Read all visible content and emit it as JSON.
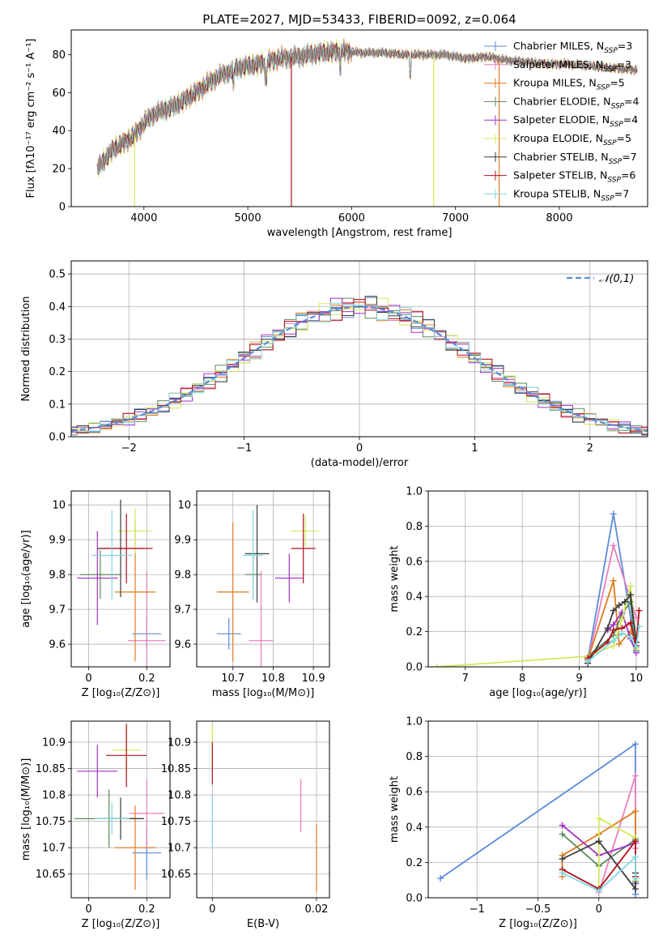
{
  "title": "PLATE=2027, MJD=53433, FIBERID=0092, z=0.064",
  "colors": {
    "Chabrier MILES": "#5b8bd9",
    "Salpeter MILES": "#e77fbe",
    "Kroupa MILES": "#e07b1f",
    "Chabrier ELODIE": "#5a8a5a",
    "Salpeter ELODIE": "#a52fc9",
    "Kroupa ELODIE": "#d2e85a",
    "Chabrier STELIB": "#3a3a3a",
    "Salpeter STELIB": "#b0101a",
    "Kroupa STELIB": "#7fd7e0"
  },
  "chart_data": [
    {
      "id": "spectrum",
      "type": "line",
      "title": "PLATE=2027, MJD=53433, FIBERID=0092, z=0.064",
      "xlabel": "wavelength [Angstrom, rest frame]",
      "ylabel": "Flux [fλ10⁻¹⁷ erg cm⁻² s⁻¹ A⁻¹]",
      "xlim": [
        3300,
        8850
      ],
      "ylim": [
        0,
        93
      ],
      "xticks": [
        4000,
        5000,
        6000,
        7000,
        8000
      ],
      "yticks": [
        0,
        20,
        40,
        60,
        80
      ],
      "legend_position": "top-right",
      "continuum": {
        "wavelength": [
          3550,
          3700,
          3900,
          4000,
          4100,
          4300,
          4500,
          4700,
          4900,
          5100,
          5300,
          5500,
          5700,
          5900,
          6100,
          6300,
          6500,
          6700,
          6900,
          7100,
          7300,
          7500,
          7700,
          7900,
          8100,
          8300,
          8500,
          8750
        ],
        "flux": [
          20,
          30,
          37,
          44,
          49,
          53,
          60,
          68,
          73,
          75,
          78,
          79,
          81,
          82,
          81,
          81,
          80,
          80,
          80,
          78,
          79,
          77,
          76,
          75,
          75,
          74,
          73,
          72
        ]
      },
      "dropouts_wavelength": [
        3910,
        5420,
        6790,
        7420
      ],
      "legend": [
        {
          "label": "Chabrier MILES, N",
          "sub": "SSP",
          "eq": "=3"
        },
        {
          "label": "Salpeter MILES, N",
          "sub": "SSP",
          "eq": "=3"
        },
        {
          "label": "Kroupa MILES, N",
          "sub": "SSP",
          "eq": "=5"
        },
        {
          "label": "Chabrier ELODIE, N",
          "sub": "SSP",
          "eq": "=4"
        },
        {
          "label": "Salpeter ELODIE, N",
          "sub": "SSP",
          "eq": "=4"
        },
        {
          "label": "Kroupa ELODIE, N",
          "sub": "SSP",
          "eq": "=5"
        },
        {
          "label": "Chabrier STELIB, N",
          "sub": "SSP",
          "eq": "=7"
        },
        {
          "label": "Salpeter STELIB, N",
          "sub": "SSP",
          "eq": "=6"
        },
        {
          "label": "Kroupa STELIB, N",
          "sub": "SSP",
          "eq": "=7"
        }
      ]
    },
    {
      "id": "residuals",
      "type": "step",
      "xlabel": "(data-model)/error",
      "ylabel": "Normed distribution",
      "xlim": [
        -2.5,
        2.5
      ],
      "ylim": [
        0,
        0.54
      ],
      "xticks": [
        -2,
        -1,
        0,
        1,
        2
      ],
      "yticks": [
        0.0,
        0.1,
        0.2,
        0.3,
        0.4,
        0.5
      ],
      "grid": true,
      "bin_width": 0.1,
      "legend_position": "top-right",
      "reference": {
        "label": "𝒩(0,1)",
        "mean": 0,
        "sigma": 1,
        "color": "#5b8bd9"
      },
      "envelope_gaussian_sigma": 1
    },
    {
      "id": "age_vs_Z",
      "type": "errorbar",
      "xlabel": "Z [log₁₀(Z/Z⊙)]",
      "ylabel": "age  [log₁₀(age/yr)]",
      "xlim": [
        -0.06,
        0.28
      ],
      "ylim": [
        9.535,
        10.04
      ],
      "xticks": [
        0.0,
        0.2
      ],
      "yticks": [
        9.6,
        9.7,
        9.8,
        9.9,
        10.0
      ],
      "grid": true,
      "points": [
        {
          "series": "Chabrier MILES",
          "x": 0.2,
          "xerr": 0.05,
          "y": 9.63,
          "yerr": 0.045
        },
        {
          "series": "Salpeter MILES",
          "x": 0.2,
          "xerr": 0.065,
          "y": 9.61,
          "yerr": 0.2
        },
        {
          "series": "Kroupa MILES",
          "x": 0.16,
          "xerr": 0.07,
          "y": 9.75,
          "yerr": 0.2
        },
        {
          "series": "Chabrier ELODIE",
          "x": 0.04,
          "xerr": 0.07,
          "y": 9.8,
          "yerr": 0.07
        },
        {
          "series": "Salpeter ELODIE",
          "x": 0.03,
          "xerr": 0.07,
          "y": 9.79,
          "yerr": 0.135
        },
        {
          "series": "Kroupa ELODIE",
          "x": 0.16,
          "xerr": 0.06,
          "y": 9.925,
          "yerr": 0.065
        },
        {
          "series": "Chabrier STELIB",
          "x": 0.11,
          "xerr": 0.08,
          "y": 9.875,
          "yerr": 0.14
        },
        {
          "series": "Salpeter STELIB",
          "x": 0.13,
          "xerr": 0.09,
          "y": 9.875,
          "yerr": 0.1
        },
        {
          "series": "Kroupa STELIB",
          "x": 0.08,
          "xerr": 0.07,
          "y": 9.855,
          "yerr": 0.13
        }
      ]
    },
    {
      "id": "age_vs_mass",
      "type": "errorbar",
      "xlabel": "mass [log₁₀(M/M⊙)]",
      "ylabel": "",
      "xlim": [
        10.61,
        10.94
      ],
      "ylim": [
        9.535,
        10.04
      ],
      "xticks": [
        10.7,
        10.8,
        10.9
      ],
      "yticks": [
        9.6,
        9.7,
        9.8,
        9.9,
        10.0
      ],
      "grid": true,
      "points": [
        {
          "series": "Chabrier MILES",
          "x": 10.69,
          "xerr": 0.03,
          "y": 9.63,
          "yerr": 0.045
        },
        {
          "series": "Salpeter MILES",
          "x": 10.77,
          "xerr": 0.03,
          "y": 9.61,
          "yerr": 0.2
        },
        {
          "series": "Kroupa MILES",
          "x": 10.7,
          "xerr": 0.04,
          "y": 9.75,
          "yerr": 0.2
        },
        {
          "series": "Chabrier ELODIE",
          "x": 10.75,
          "xerr": 0.02,
          "y": 9.8,
          "yerr": 0.07
        },
        {
          "series": "Salpeter ELODIE",
          "x": 10.84,
          "xerr": 0.035,
          "y": 9.79,
          "yerr": 0.07
        },
        {
          "series": "Kroupa ELODIE",
          "x": 10.88,
          "xerr": 0.035,
          "y": 9.925,
          "yerr": 0.045
        },
        {
          "series": "Chabrier STELIB",
          "x": 10.76,
          "xerr": 0.03,
          "y": 9.86,
          "yerr": 0.14
        },
        {
          "series": "Salpeter STELIB",
          "x": 10.875,
          "xerr": 0.03,
          "y": 9.875,
          "yerr": 0.1
        },
        {
          "series": "Kroupa STELIB",
          "x": 10.75,
          "xerr": 0.025,
          "y": 9.855,
          "yerr": 0.13
        }
      ]
    },
    {
      "id": "mass_weight_vs_age",
      "type": "line",
      "xlabel": "age  [log₁₀(age/yr)]",
      "ylabel": "mass weight",
      "xlim": [
        6.35,
        10.2
      ],
      "ylim": [
        0,
        1.0
      ],
      "xticks": [
        7,
        8,
        9,
        10
      ],
      "yticks": [
        0.0,
        0.2,
        0.4,
        0.6,
        0.8,
        1.0
      ],
      "grid": true,
      "series": [
        {
          "name": "Chabrier MILES",
          "x": [
            9.15,
            9.6,
            10.0
          ],
          "y": [
            0.04,
            0.87,
            0.09
          ]
        },
        {
          "name": "Salpeter MILES",
          "x": [
            9.15,
            9.6,
            10.0
          ],
          "y": [
            0.03,
            0.69,
            0.28
          ]
        },
        {
          "name": "Kroupa MILES",
          "x": [
            9.15,
            9.6,
            9.7,
            9.9,
            10.0
          ],
          "y": [
            0.04,
            0.49,
            0.13,
            0.2,
            0.14
          ]
        },
        {
          "name": "Chabrier ELODIE",
          "x": [
            9.15,
            9.6,
            9.75,
            9.9,
            10.0
          ],
          "y": [
            0.06,
            0.18,
            0.3,
            0.37,
            0.09
          ]
        },
        {
          "name": "Salpeter ELODIE",
          "x": [
            9.5,
            9.6,
            9.75,
            9.9,
            10.0
          ],
          "y": [
            0.21,
            0.24,
            0.31,
            0.16,
            0.08
          ]
        },
        {
          "name": "Kroupa ELODIE",
          "x": [
            6.5,
            9.15,
            9.6,
            9.75,
            9.9,
            10.0
          ],
          "y": [
            0.0,
            0.06,
            0.12,
            0.27,
            0.46,
            0.1
          ]
        },
        {
          "name": "Chabrier STELIB",
          "x": [
            9.15,
            9.5,
            9.6,
            9.7,
            9.8,
            9.9,
            10.0
          ],
          "y": [
            0.02,
            0.22,
            0.32,
            0.35,
            0.37,
            0.41,
            0.14
          ]
        },
        {
          "name": "Salpeter STELIB",
          "x": [
            9.15,
            9.5,
            9.6,
            9.75,
            9.9,
            10.0,
            10.05
          ],
          "y": [
            0.05,
            0.14,
            0.21,
            0.22,
            0.25,
            0.12,
            0.32
          ]
        },
        {
          "name": "Kroupa STELIB",
          "x": [
            9.15,
            9.6,
            9.75,
            9.9,
            10.0,
            10.05
          ],
          "y": [
            0.03,
            0.15,
            0.19,
            0.17,
            0.11,
            0.23
          ]
        }
      ]
    },
    {
      "id": "mass_vs_Z",
      "type": "errorbar",
      "xlabel": "Z [log₁₀(Z/Z⊙)]",
      "ylabel": "mass [log₁₀(M/M⊙)]",
      "xlim": [
        -0.06,
        0.28
      ],
      "ylim": [
        10.605,
        10.94
      ],
      "xticks": [
        0.0,
        0.2
      ],
      "yticks": [
        10.65,
        10.7,
        10.75,
        10.8,
        10.85,
        10.9
      ],
      "grid": true,
      "points": [
        {
          "series": "Chabrier MILES",
          "x": 0.2,
          "xerr": 0.05,
          "y": 10.69,
          "yerr": 0.05
        },
        {
          "series": "Salpeter MILES",
          "x": 0.2,
          "xerr": 0.06,
          "y": 10.765,
          "yerr": 0.065
        },
        {
          "series": "Kroupa MILES",
          "x": 0.16,
          "xerr": 0.07,
          "y": 10.7,
          "yerr": 0.08
        },
        {
          "series": "Chabrier ELODIE",
          "x": 0.07,
          "xerr": 0.12,
          "y": 10.755,
          "yerr": 0.055
        },
        {
          "series": "Salpeter ELODIE",
          "x": 0.03,
          "xerr": 0.07,
          "y": 10.845,
          "yerr": 0.05
        },
        {
          "series": "Kroupa ELODIE",
          "x": 0.13,
          "xerr": 0.05,
          "y": 10.885,
          "yerr": 0.045
        },
        {
          "series": "Chabrier STELIB",
          "x": 0.11,
          "xerr": 0.08,
          "y": 10.755,
          "yerr": 0.04
        },
        {
          "series": "Salpeter STELIB",
          "x": 0.13,
          "xerr": 0.07,
          "y": 10.875,
          "yerr": 0.06
        },
        {
          "series": "Kroupa STELIB",
          "x": 0.08,
          "xerr": 0.06,
          "y": 10.755,
          "yerr": 0.03
        }
      ]
    },
    {
      "id": "mass_vs_ebv",
      "type": "errorbar",
      "xlabel": "E(B-V)",
      "ylabel": "",
      "xlim": [
        -0.003,
        0.0225
      ],
      "ylim": [
        10.605,
        10.94
      ],
      "xticks": [
        0.0,
        0.02
      ],
      "yticks": [
        10.65,
        10.7,
        10.75,
        10.8,
        10.85,
        10.9
      ],
      "grid": true,
      "points": [
        {
          "series": "Kroupa ELODIE",
          "x": 0.0,
          "xerr": 0,
          "y": 10.89,
          "yerr": 0.045
        },
        {
          "series": "Salpeter STELIB",
          "x": 0.0,
          "xerr": 0,
          "y": 10.86,
          "yerr": 0.04
        },
        {
          "series": "Kroupa STELIB",
          "x": 0.0,
          "xerr": 0,
          "y": 10.75,
          "yerr": 0.05
        },
        {
          "series": "Salpeter MILES",
          "x": 0.017,
          "xerr": 0,
          "y": 10.78,
          "yerr": 0.05
        },
        {
          "series": "Kroupa MILES",
          "x": 0.02,
          "xerr": 0,
          "y": 10.68,
          "yerr": 0.065
        }
      ]
    },
    {
      "id": "mass_weight_vs_Z",
      "type": "line",
      "xlabel": "Z [log₁₀(Z/Z⊙)]",
      "ylabel": "mass weight",
      "xlim": [
        -1.4,
        0.4
      ],
      "ylim": [
        0,
        1.0
      ],
      "xticks": [
        -1.0,
        -0.5,
        0.0
      ],
      "yticks": [
        0.0,
        0.2,
        0.4,
        0.6,
        0.8,
        1.0
      ],
      "grid": true,
      "series": [
        {
          "name": "Chabrier MILES",
          "x": [
            -1.3,
            0.3,
            0.3
          ],
          "y": [
            0.11,
            0.87,
            0.02
          ]
        },
        {
          "name": "Salpeter MILES",
          "x": [
            0.0,
            0.3,
            0.3
          ],
          "y": [
            0.03,
            0.69,
            0.28
          ]
        },
        {
          "name": "Kroupa MILES",
          "x": [
            -0.3,
            -0.3,
            0.0,
            0.3,
            0.3
          ],
          "y": [
            0.12,
            0.24,
            0.36,
            0.49,
            0.14
          ]
        },
        {
          "name": "Chabrier ELODIE",
          "x": [
            -0.3,
            0.0,
            0.3,
            0.3
          ],
          "y": [
            0.36,
            0.18,
            0.33,
            0.09
          ]
        },
        {
          "name": "Salpeter ELODIE",
          "x": [
            -0.3,
            0.0,
            0.3,
            0.3
          ],
          "y": [
            0.41,
            0.24,
            0.31,
            0.08
          ]
        },
        {
          "name": "Kroupa ELODIE",
          "x": [
            0.0,
            0.0,
            0.3,
            0.3
          ],
          "y": [
            0.06,
            0.45,
            0.34,
            0.1
          ]
        },
        {
          "name": "Chabrier STELIB",
          "x": [
            -0.3,
            0.0,
            0.3,
            0.3
          ],
          "y": [
            0.22,
            0.32,
            0.05,
            0.14
          ]
        },
        {
          "name": "Salpeter STELIB",
          "x": [
            -0.3,
            0.0,
            0.3,
            0.3
          ],
          "y": [
            0.16,
            0.05,
            0.32,
            0.12
          ]
        },
        {
          "name": "Kroupa STELIB",
          "x": [
            -0.3,
            0.0,
            0.3,
            0.3
          ],
          "y": [
            0.14,
            0.04,
            0.23,
            0.11
          ]
        }
      ]
    }
  ]
}
